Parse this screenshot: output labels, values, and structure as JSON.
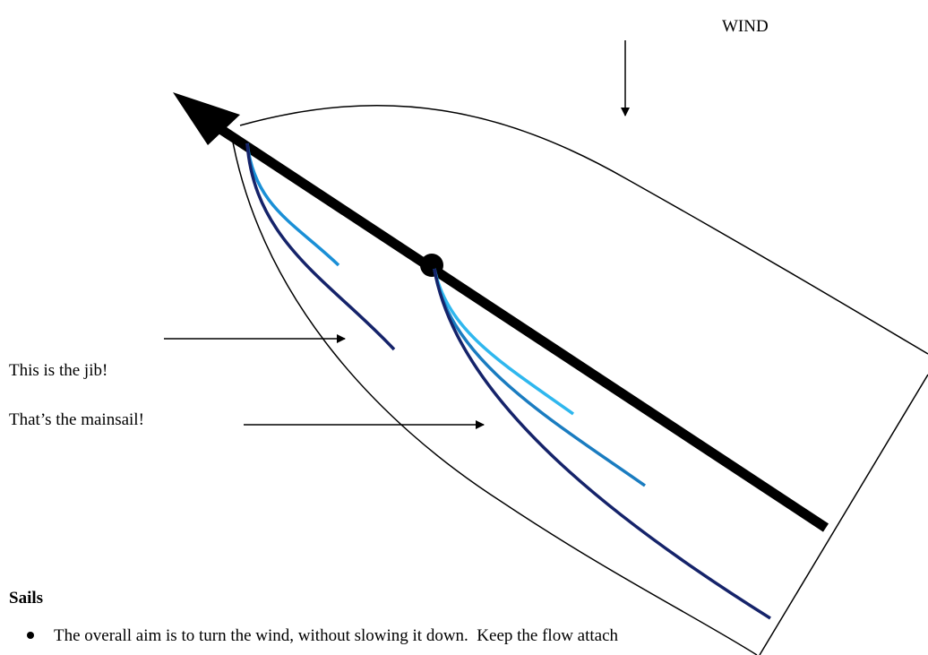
{
  "labels": {
    "wind": "WIND",
    "jib": "This is the jib!",
    "mainsail": "That’s the mainsail!"
  },
  "section": {
    "heading": "Sails",
    "bullets": [
      "The overall aim is to turn the wind, without slowing it down.  Keep the flow attach"
    ]
  }
}
